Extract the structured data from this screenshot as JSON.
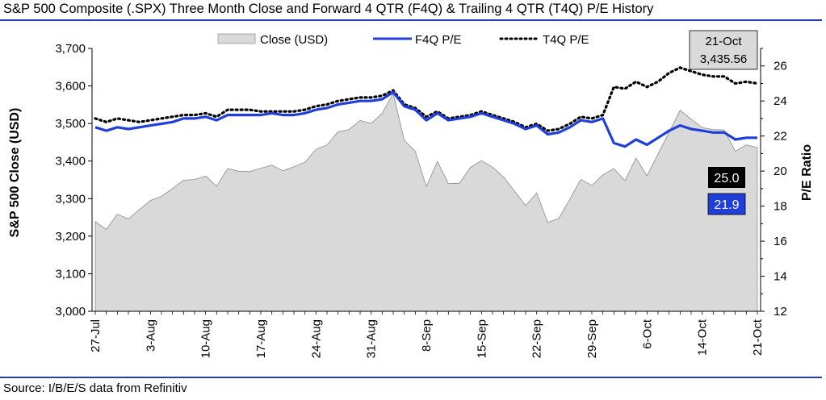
{
  "title": "S&P 500 Composite (.SPX) Three Month Close and Forward 4 QTR (F4Q) & Trailing 4 QTR (T4Q) P/E History",
  "source": "Source: I/B/E/S data from Refinitiv",
  "colors": {
    "close_fill": "#d9d9d9",
    "close_stroke": "#8c8c8c",
    "f4q": "#1f3fd8",
    "t4q": "#000000",
    "rule": "#1f3fbf"
  },
  "chart_data": {
    "type": "line",
    "x_ticks": [
      "27-Jul",
      "3-Aug",
      "10-Aug",
      "17-Aug",
      "24-Aug",
      "31-Aug",
      "8-Sep",
      "15-Sep",
      "22-Sep",
      "29-Sep",
      "6-Oct",
      "14-Oct",
      "21-Oct"
    ],
    "x_tick_index": [
      0,
      5,
      10,
      15,
      20,
      25,
      30,
      35,
      40,
      45,
      50,
      55,
      60
    ],
    "ylabel_left": "S&P 500 Close (USD)",
    "ylabel_right": "P/E Ratio",
    "ylim_left": [
      3000,
      3700
    ],
    "yticks_left": [
      "3,000",
      "3,100",
      "3,200",
      "3,300",
      "3,400",
      "3,500",
      "3,600",
      "3,700"
    ],
    "ylim_right": [
      12,
      27
    ],
    "yticks_right": [
      "12",
      "14",
      "16",
      "18",
      "20",
      "22",
      "24",
      "26"
    ],
    "legend": {
      "position": "top",
      "items": [
        "Close (USD)",
        "F4Q P/E",
        "T4Q P/E"
      ]
    },
    "series": [
      {
        "name": "Close (USD)",
        "kind": "area",
        "axis": "left",
        "values": [
          3239,
          3218,
          3258,
          3246,
          3271,
          3295,
          3306,
          3327,
          3349,
          3351,
          3360,
          3333,
          3380,
          3373,
          3372,
          3381,
          3389,
          3374,
          3385,
          3397,
          3431,
          3443,
          3478,
          3484,
          3508,
          3500,
          3527,
          3580,
          3455,
          3426,
          3332,
          3399,
          3340,
          3341,
          3383,
          3401,
          3384,
          3357,
          3320,
          3281,
          3315,
          3237,
          3247,
          3298,
          3351,
          3335,
          3363,
          3380,
          3348,
          3408,
          3361,
          3419,
          3477,
          3535,
          3512,
          3489,
          3484,
          3483,
          3426,
          3443,
          3436
        ]
      },
      {
        "name": "F4Q P/E",
        "kind": "line",
        "axis": "right",
        "values": [
          22.5,
          22.3,
          22.5,
          22.4,
          22.5,
          22.6,
          22.7,
          22.8,
          23.0,
          23.0,
          23.1,
          22.9,
          23.2,
          23.2,
          23.2,
          23.2,
          23.3,
          23.2,
          23.2,
          23.3,
          23.5,
          23.6,
          23.8,
          23.9,
          24.0,
          24.0,
          24.1,
          24.5,
          23.7,
          23.5,
          22.9,
          23.3,
          22.9,
          23.0,
          23.1,
          23.3,
          23.1,
          22.9,
          22.7,
          22.4,
          22.6,
          22.1,
          22.2,
          22.5,
          22.9,
          22.8,
          23.0,
          21.6,
          21.4,
          21.8,
          21.5,
          21.9,
          22.3,
          22.6,
          22.4,
          22.3,
          22.2,
          22.2,
          21.8,
          21.9,
          21.9
        ]
      },
      {
        "name": "T4Q P/E",
        "kind": "dotted",
        "axis": "right",
        "values": [
          23.0,
          22.8,
          23.0,
          22.9,
          22.8,
          22.9,
          23.0,
          23.1,
          23.2,
          23.2,
          23.3,
          23.1,
          23.5,
          23.5,
          23.5,
          23.4,
          23.4,
          23.4,
          23.4,
          23.5,
          23.7,
          23.8,
          24.0,
          24.1,
          24.2,
          24.2,
          24.3,
          24.6,
          23.8,
          23.6,
          23.1,
          23.4,
          23.0,
          23.1,
          23.2,
          23.4,
          23.2,
          23.0,
          22.8,
          22.5,
          22.7,
          22.3,
          22.4,
          22.7,
          23.1,
          23.0,
          23.2,
          24.8,
          24.7,
          25.1,
          24.8,
          25.1,
          25.6,
          25.9,
          25.7,
          25.5,
          25.4,
          25.4,
          25.0,
          25.1,
          25.0
        ]
      }
    ],
    "annotations": {
      "last_date": "21-Oct",
      "last_close": "3,435.56",
      "t4q_last": "25.0",
      "f4q_last": "21.9"
    }
  }
}
